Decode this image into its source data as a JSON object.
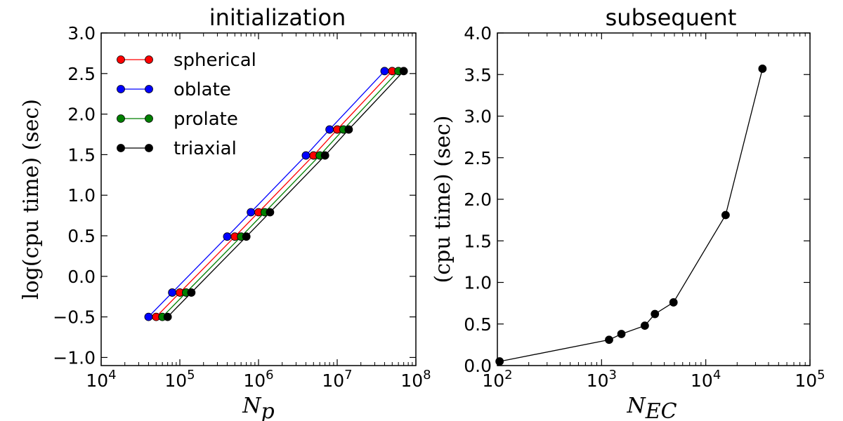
{
  "chart_data": [
    {
      "type": "line",
      "title": "initialization",
      "xlabel": "N_p",
      "ylabel": "log(cpu time) (sec)",
      "xscale": "log",
      "xlim": [
        10000,
        100000000
      ],
      "ylim": [
        -1.1,
        3.0
      ],
      "xticks": [
        {
          "value": 10000,
          "base": "10",
          "exp": "4"
        },
        {
          "value": 100000,
          "base": "10",
          "exp": "5"
        },
        {
          "value": 1000000,
          "base": "10",
          "exp": "6"
        },
        {
          "value": 10000000,
          "base": "10",
          "exp": "7"
        },
        {
          "value": 100000000,
          "base": "10",
          "exp": "8"
        }
      ],
      "yticks": [
        {
          "value": -1.0,
          "label": "−1.0"
        },
        {
          "value": -0.5,
          "label": "−0.5"
        },
        {
          "value": 0.0,
          "label": "0.0"
        },
        {
          "value": 0.5,
          "label": "0.5"
        },
        {
          "value": 1.0,
          "label": "1.0"
        },
        {
          "value": 1.5,
          "label": "1.5"
        },
        {
          "value": 2.0,
          "label": "2.0"
        },
        {
          "value": 2.5,
          "label": "2.5"
        },
        {
          "value": 3.0,
          "label": "3.0"
        }
      ],
      "legend_position": "top-left",
      "grid": false,
      "series": [
        {
          "name": "spherical",
          "color": "#ff0000",
          "x": [
            50000,
            100000,
            500000,
            1000000,
            5000000,
            10000000,
            50000000
          ],
          "y": [
            -0.5,
            -0.2,
            0.49,
            0.79,
            1.49,
            1.81,
            2.53
          ]
        },
        {
          "name": "oblate",
          "color": "#0000ff",
          "x": [
            40000,
            80000,
            400000,
            800000,
            4000000,
            8000000,
            40000000
          ],
          "y": [
            -0.5,
            -0.2,
            0.49,
            0.79,
            1.49,
            1.81,
            2.53
          ]
        },
        {
          "name": "prolate",
          "color": "#008000",
          "x": [
            60000,
            120000,
            600000,
            1200000,
            6000000,
            12000000,
            60000000
          ],
          "y": [
            -0.5,
            -0.2,
            0.49,
            0.79,
            1.49,
            1.81,
            2.53
          ]
        },
        {
          "name": "triaxial",
          "color": "#000000",
          "x": [
            70000,
            140000,
            700000,
            1400000,
            7000000,
            14000000,
            70000000
          ],
          "y": [
            -0.5,
            -0.2,
            0.49,
            0.79,
            1.49,
            1.81,
            2.53
          ]
        }
      ]
    },
    {
      "type": "line",
      "title": "subsequent",
      "xlabel": "N_EC",
      "ylabel": "(cpu time) (sec)",
      "xscale": "log",
      "xlim": [
        100,
        100000
      ],
      "ylim": [
        0.0,
        4.0
      ],
      "xticks": [
        {
          "value": 100,
          "base": "10",
          "exp": "2"
        },
        {
          "value": 1000,
          "base": "10",
          "exp": "3"
        },
        {
          "value": 10000,
          "base": "10",
          "exp": "4"
        },
        {
          "value": 100000,
          "base": "10",
          "exp": "5"
        }
      ],
      "yticks": [
        {
          "value": 0.0,
          "label": "0.0"
        },
        {
          "value": 0.5,
          "label": "0.5"
        },
        {
          "value": 1.0,
          "label": "1.0"
        },
        {
          "value": 1.5,
          "label": "1.5"
        },
        {
          "value": 2.0,
          "label": "2.0"
        },
        {
          "value": 2.5,
          "label": "2.5"
        },
        {
          "value": 3.0,
          "label": "3.0"
        },
        {
          "value": 3.5,
          "label": "3.5"
        },
        {
          "value": 4.0,
          "label": "4.0"
        }
      ],
      "grid": false,
      "series": [
        {
          "color": "#000000",
          "x": [
            105,
            1180,
            1550,
            2600,
            3250,
            4900,
            15500,
            35000
          ],
          "y": [
            0.05,
            0.31,
            0.38,
            0.48,
            0.62,
            0.76,
            1.81,
            3.57
          ]
        }
      ]
    }
  ]
}
